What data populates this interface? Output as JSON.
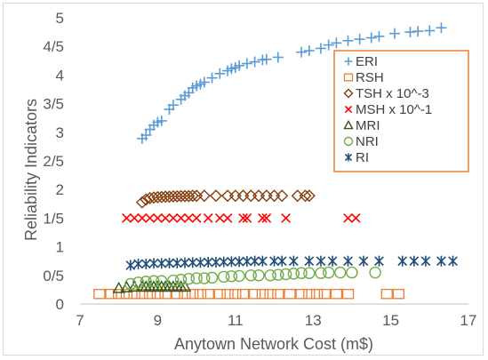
{
  "chart_data": {
    "type": "scatter",
    "xlabel": "Anytown Network Cost (m$)",
    "ylabel": "Reliability Indicators",
    "xlim": [
      7,
      17
    ],
    "ylim": [
      0,
      1
    ],
    "x_ticks": [
      7,
      9,
      11,
      13,
      15,
      17
    ],
    "y_ticks": [
      {
        "v": 0,
        "label": "0"
      },
      {
        "v": 0.1,
        "label": "0/5"
      },
      {
        "v": 0.2,
        "label": "1"
      },
      {
        "v": 0.3,
        "label": "1/5"
      },
      {
        "v": 0.4,
        "label": "2"
      },
      {
        "v": 0.5,
        "label": "2/5"
      },
      {
        "v": 0.6,
        "label": "3"
      },
      {
        "v": 0.7,
        "label": "3/5"
      },
      {
        "v": 0.8,
        "label": "4"
      },
      {
        "v": 0.9,
        "label": "4/5"
      },
      {
        "v": 1.0,
        "label": "5"
      }
    ],
    "grid": false,
    "legend_position": "right",
    "series": [
      {
        "name": "ERI",
        "marker": "plus",
        "color": "#5b9bd5",
        "points": [
          [
            8.6,
            0.578
          ],
          [
            8.7,
            0.59
          ],
          [
            8.8,
            0.61
          ],
          [
            8.9,
            0.625
          ],
          [
            9.0,
            0.635
          ],
          [
            9.1,
            0.64
          ],
          [
            9.3,
            0.68
          ],
          [
            9.4,
            0.695
          ],
          [
            9.6,
            0.715
          ],
          [
            9.7,
            0.728
          ],
          [
            9.8,
            0.738
          ],
          [
            9.9,
            0.755
          ],
          [
            10.0,
            0.762
          ],
          [
            10.1,
            0.768
          ],
          [
            10.2,
            0.775
          ],
          [
            10.4,
            0.79
          ],
          [
            10.6,
            0.805
          ],
          [
            10.8,
            0.815
          ],
          [
            10.9,
            0.822
          ],
          [
            11.0,
            0.826
          ],
          [
            11.1,
            0.833
          ],
          [
            11.3,
            0.84
          ],
          [
            11.5,
            0.846
          ],
          [
            11.7,
            0.853
          ],
          [
            11.8,
            0.855
          ],
          [
            12.1,
            0.862
          ],
          [
            12.7,
            0.88
          ],
          [
            12.9,
            0.885
          ],
          [
            13.2,
            0.893
          ],
          [
            13.4,
            0.905
          ],
          [
            13.6,
            0.912
          ],
          [
            13.9,
            0.92
          ],
          [
            14.2,
            0.925
          ],
          [
            14.5,
            0.93
          ],
          [
            14.7,
            0.935
          ],
          [
            15.1,
            0.945
          ],
          [
            15.5,
            0.95
          ],
          [
            15.7,
            0.953
          ],
          [
            16.0,
            0.955
          ],
          [
            16.3,
            0.965
          ]
        ]
      },
      {
        "name": "RSH",
        "marker": "square",
        "color": "#ed7d31",
        "points": [
          [
            7.5,
            0.035
          ],
          [
            7.8,
            0.035
          ],
          [
            8.0,
            0.035
          ],
          [
            8.2,
            0.035
          ],
          [
            8.4,
            0.035
          ],
          [
            8.6,
            0.035
          ],
          [
            8.8,
            0.035
          ],
          [
            9.0,
            0.035
          ],
          [
            9.2,
            0.035
          ],
          [
            9.5,
            0.035
          ],
          [
            9.7,
            0.035
          ],
          [
            9.9,
            0.035
          ],
          [
            10.1,
            0.035
          ],
          [
            10.3,
            0.035
          ],
          [
            10.6,
            0.035
          ],
          [
            10.8,
            0.035
          ],
          [
            11.0,
            0.035
          ],
          [
            11.2,
            0.035
          ],
          [
            11.5,
            0.035
          ],
          [
            11.7,
            0.035
          ],
          [
            11.9,
            0.035
          ],
          [
            12.1,
            0.035
          ],
          [
            12.4,
            0.035
          ],
          [
            12.7,
            0.035
          ],
          [
            12.9,
            0.035
          ],
          [
            13.1,
            0.035
          ],
          [
            13.3,
            0.035
          ],
          [
            13.6,
            0.035
          ],
          [
            13.9,
            0.035
          ],
          [
            14.9,
            0.035
          ],
          [
            15.2,
            0.035
          ]
        ]
      },
      {
        "name": "TSH x 10^-3",
        "marker": "diamond",
        "color": "#843c0c",
        "points": [
          [
            8.6,
            0.355
          ],
          [
            8.7,
            0.365
          ],
          [
            8.8,
            0.37
          ],
          [
            8.9,
            0.372
          ],
          [
            9.0,
            0.373
          ],
          [
            9.1,
            0.374
          ],
          [
            9.2,
            0.375
          ],
          [
            9.3,
            0.375
          ],
          [
            9.4,
            0.376
          ],
          [
            9.5,
            0.376
          ],
          [
            9.6,
            0.377
          ],
          [
            9.7,
            0.377
          ],
          [
            9.8,
            0.377
          ],
          [
            9.9,
            0.378
          ],
          [
            10.0,
            0.378
          ],
          [
            10.2,
            0.378
          ],
          [
            10.5,
            0.378
          ],
          [
            10.8,
            0.378
          ],
          [
            11.0,
            0.378
          ],
          [
            11.2,
            0.378
          ],
          [
            11.4,
            0.378
          ],
          [
            11.6,
            0.378
          ],
          [
            11.8,
            0.378
          ],
          [
            12.0,
            0.378
          ],
          [
            12.2,
            0.378
          ],
          [
            12.6,
            0.378
          ],
          [
            12.8,
            0.378
          ],
          [
            12.9,
            0.378
          ]
        ]
      },
      {
        "name": "MSH x 10^-1",
        "marker": "x",
        "color": "#ff0000",
        "points": [
          [
            8.2,
            0.3
          ],
          [
            8.4,
            0.3
          ],
          [
            8.6,
            0.3
          ],
          [
            8.8,
            0.3
          ],
          [
            9.0,
            0.3
          ],
          [
            9.2,
            0.3
          ],
          [
            9.4,
            0.3
          ],
          [
            9.6,
            0.3
          ],
          [
            9.8,
            0.3
          ],
          [
            10.0,
            0.3
          ],
          [
            10.3,
            0.3
          ],
          [
            10.6,
            0.3
          ],
          [
            10.8,
            0.3
          ],
          [
            11.2,
            0.3
          ],
          [
            11.3,
            0.3
          ],
          [
            11.7,
            0.3
          ],
          [
            11.8,
            0.3
          ],
          [
            12.3,
            0.3
          ],
          [
            13.9,
            0.3
          ],
          [
            14.1,
            0.3
          ]
        ]
      },
      {
        "name": "MRI",
        "marker": "triangle",
        "color": "#375623",
        "points": [
          [
            8.0,
            0.055
          ],
          [
            8.2,
            0.058
          ],
          [
            8.4,
            0.06
          ],
          [
            8.6,
            0.06
          ],
          [
            8.7,
            0.06
          ],
          [
            8.8,
            0.06
          ],
          [
            8.9,
            0.06
          ],
          [
            9.0,
            0.06
          ],
          [
            9.1,
            0.06
          ],
          [
            9.2,
            0.06
          ],
          [
            9.3,
            0.06
          ],
          [
            9.4,
            0.06
          ],
          [
            9.5,
            0.06
          ],
          [
            9.6,
            0.06
          ],
          [
            9.7,
            0.06
          ]
        ]
      },
      {
        "name": "NRI",
        "marker": "circle",
        "color": "#70ad47",
        "points": [
          [
            8.3,
            0.07
          ],
          [
            8.5,
            0.075
          ],
          [
            8.7,
            0.078
          ],
          [
            8.9,
            0.08
          ],
          [
            9.1,
            0.08
          ],
          [
            9.4,
            0.082
          ],
          [
            9.6,
            0.085
          ],
          [
            9.8,
            0.088
          ],
          [
            10.0,
            0.09
          ],
          [
            10.2,
            0.09
          ],
          [
            10.4,
            0.092
          ],
          [
            10.7,
            0.095
          ],
          [
            10.9,
            0.097
          ],
          [
            11.1,
            0.098
          ],
          [
            11.4,
            0.1
          ],
          [
            11.6,
            0.1
          ],
          [
            11.9,
            0.1
          ],
          [
            12.1,
            0.102
          ],
          [
            12.3,
            0.104
          ],
          [
            12.5,
            0.106
          ],
          [
            12.7,
            0.108
          ],
          [
            12.9,
            0.108
          ],
          [
            13.2,
            0.108
          ],
          [
            13.4,
            0.11
          ],
          [
            13.7,
            0.11
          ],
          [
            14.0,
            0.11
          ],
          [
            14.6,
            0.11
          ]
        ]
      },
      {
        "name": "RI",
        "marker": "asterisk",
        "color": "#1f4e79",
        "points": [
          [
            8.3,
            0.135
          ],
          [
            8.5,
            0.14
          ],
          [
            8.7,
            0.14
          ],
          [
            8.9,
            0.142
          ],
          [
            9.1,
            0.142
          ],
          [
            9.3,
            0.143
          ],
          [
            9.5,
            0.143
          ],
          [
            9.7,
            0.144
          ],
          [
            9.9,
            0.145
          ],
          [
            10.1,
            0.145
          ],
          [
            10.3,
            0.146
          ],
          [
            10.5,
            0.146
          ],
          [
            10.7,
            0.147
          ],
          [
            10.9,
            0.148
          ],
          [
            11.1,
            0.148
          ],
          [
            11.3,
            0.149
          ],
          [
            11.5,
            0.15
          ],
          [
            11.7,
            0.15
          ],
          [
            12.0,
            0.15
          ],
          [
            12.2,
            0.15
          ],
          [
            12.5,
            0.15
          ],
          [
            12.9,
            0.15
          ],
          [
            13.2,
            0.15
          ],
          [
            13.5,
            0.15
          ],
          [
            13.9,
            0.15
          ],
          [
            14.3,
            0.15
          ],
          [
            14.7,
            0.15
          ],
          [
            15.3,
            0.15
          ],
          [
            15.6,
            0.15
          ],
          [
            15.9,
            0.15
          ],
          [
            16.3,
            0.15
          ],
          [
            16.6,
            0.15
          ]
        ]
      }
    ]
  }
}
